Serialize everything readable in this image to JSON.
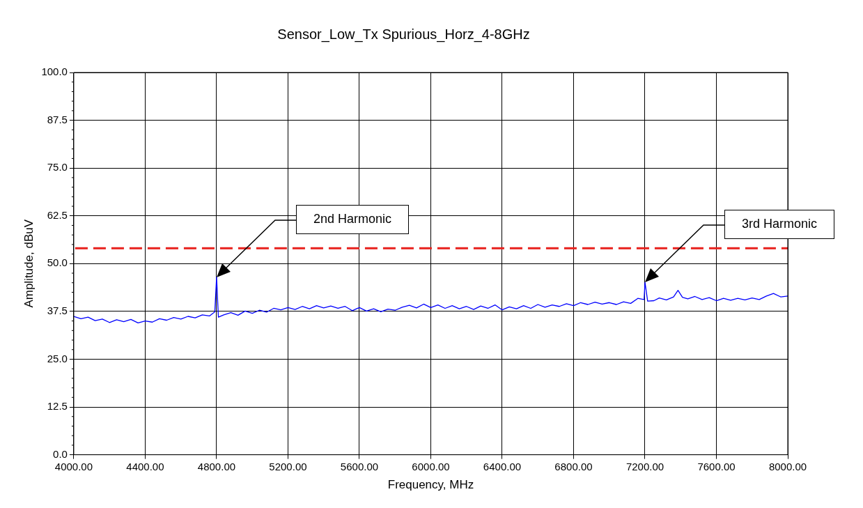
{
  "chart_data": {
    "type": "line",
    "title": "Sensor_Low_Tx Spurious_Horz_4-8GHz",
    "xlabel": "Frequency, MHz",
    "ylabel": "Amplitude, dBuV",
    "xlim": [
      4000,
      8000
    ],
    "ylim": [
      0,
      100
    ],
    "xticks": [
      {
        "value": 4000,
        "label": "4000.00"
      },
      {
        "value": 4400,
        "label": "4400.00"
      },
      {
        "value": 4800,
        "label": "4800.00"
      },
      {
        "value": 5200,
        "label": "5200.00"
      },
      {
        "value": 5600,
        "label": "5600.00"
      },
      {
        "value": 6000,
        "label": "6000.00"
      },
      {
        "value": 6400,
        "label": "6400.00"
      },
      {
        "value": 6800,
        "label": "6800.00"
      },
      {
        "value": 7200,
        "label": "7200.00"
      },
      {
        "value": 7600,
        "label": "7600.00"
      },
      {
        "value": 8000,
        "label": "8000.00"
      }
    ],
    "yticks": [
      {
        "value": 0,
        "label": "0.0"
      },
      {
        "value": 12.5,
        "label": "12.5"
      },
      {
        "value": 25,
        "label": "25.0"
      },
      {
        "value": 37.5,
        "label": "37.5"
      },
      {
        "value": 50,
        "label": "50.0"
      },
      {
        "value": 62.5,
        "label": "62.5"
      },
      {
        "value": 75,
        "label": "75.0"
      },
      {
        "value": 87.5,
        "label": "87.5"
      },
      {
        "value": 100,
        "label": "100.0"
      }
    ],
    "grid": true,
    "legend": false,
    "marker": "none",
    "line_style": "solid",
    "series": [
      {
        "color": "#0000ff",
        "x": [
          4000,
          4040,
          4080,
          4120,
          4160,
          4200,
          4240,
          4280,
          4320,
          4360,
          4400,
          4440,
          4480,
          4520,
          4560,
          4600,
          4640,
          4680,
          4720,
          4760,
          4790,
          4800,
          4810,
          4840,
          4880,
          4920,
          4960,
          5000,
          5040,
          5080,
          5120,
          5160,
          5200,
          5240,
          5280,
          5320,
          5360,
          5400,
          5440,
          5480,
          5520,
          5560,
          5600,
          5640,
          5680,
          5720,
          5760,
          5800,
          5840,
          5880,
          5920,
          5960,
          6000,
          6040,
          6080,
          6120,
          6160,
          6200,
          6240,
          6280,
          6320,
          6360,
          6400,
          6440,
          6480,
          6520,
          6560,
          6600,
          6640,
          6680,
          6720,
          6760,
          6800,
          6840,
          6880,
          6920,
          6960,
          7000,
          7040,
          7080,
          7120,
          7160,
          7195,
          7200,
          7215,
          7250,
          7280,
          7320,
          7360,
          7385,
          7410,
          7440,
          7480,
          7520,
          7560,
          7600,
          7640,
          7680,
          7720,
          7760,
          7800,
          7840,
          7880,
          7920,
          7960,
          8000
        ],
        "values": [
          36.2,
          35.6,
          36.0,
          35.1,
          35.5,
          34.6,
          35.3,
          34.8,
          35.4,
          34.5,
          35.0,
          34.7,
          35.6,
          35.2,
          35.9,
          35.5,
          36.2,
          35.8,
          36.6,
          36.3,
          37.4,
          46.5,
          36.0,
          36.6,
          37.2,
          36.5,
          37.6,
          37.0,
          37.8,
          37.3,
          38.3,
          37.9,
          38.5,
          38.0,
          38.8,
          38.2,
          39.0,
          38.4,
          38.9,
          38.3,
          38.8,
          37.7,
          38.5,
          37.6,
          38.2,
          37.4,
          38.1,
          37.8,
          38.6,
          39.1,
          38.4,
          39.4,
          38.5,
          39.2,
          38.3,
          39.0,
          38.2,
          38.8,
          38.0,
          38.9,
          38.3,
          39.2,
          37.9,
          38.7,
          38.2,
          39.0,
          38.3,
          39.3,
          38.6,
          39.2,
          38.8,
          39.5,
          39.0,
          39.8,
          39.3,
          39.9,
          39.4,
          39.8,
          39.3,
          40.0,
          39.6,
          40.9,
          40.6,
          45.1,
          40.2,
          40.3,
          41.0,
          40.5,
          41.3,
          43.0,
          41.2,
          40.8,
          41.4,
          40.6,
          41.1,
          40.3,
          40.9,
          40.4,
          40.9,
          40.5,
          41.0,
          40.6,
          41.5,
          42.2,
          41.3,
          41.5
        ]
      }
    ],
    "ref_lines": [
      {
        "axis": "y",
        "value": 54,
        "color": "#e8201c",
        "line_style": "dashed"
      }
    ],
    "annotations": [
      "2nd Harmonic",
      "3rd Harmonic"
    ]
  }
}
